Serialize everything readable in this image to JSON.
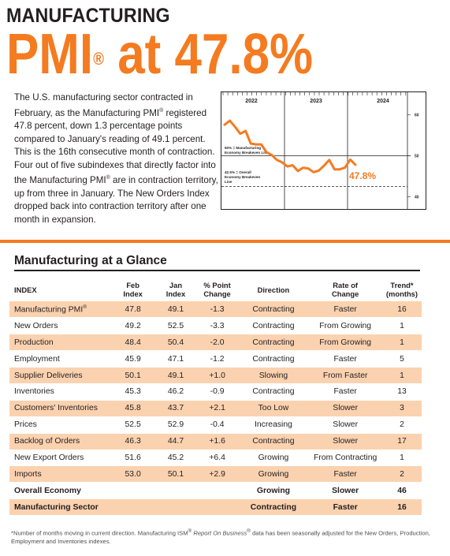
{
  "header": {
    "title_top": "MANUFACTURING",
    "title_big_prefix": "PMI",
    "title_big_reg": "®",
    "title_big_suffix": " at 47.8%"
  },
  "intro": {
    "text_1": "The U.S. manufacturing sector contracted in February, as the Manufacturing PMI",
    "reg": "®",
    "text_2": " registered 47.8 percent, down 1.3 percentage points compared to January's reading of 49.1 percent. This is the 16th consecutive month of contraction. Four out of five subindexes that directly factor into the Manufacturing PMI",
    "text_3": " are in contraction territory, up from three in January. The New Orders Index dropped back into contraction territory after one month in expansion."
  },
  "chart_data": {
    "type": "line",
    "x_labels": [
      "2022",
      "2023",
      "2024"
    ],
    "y_ticks": [
      40,
      50,
      60
    ],
    "ylim": [
      37,
      64
    ],
    "series": [
      {
        "values": [
          57.6,
          58.6,
          57.1,
          55.4,
          56.1,
          53.0,
          52.8,
          52.8,
          50.9,
          50.2,
          49.0,
          48.4,
          47.4,
          47.7,
          46.3,
          47.1,
          46.9,
          46.0,
          46.4,
          47.6,
          49.0,
          46.7,
          46.7,
          47.1,
          49.1,
          47.8
        ]
      }
    ],
    "value_label": "47.8%",
    "annotations": {
      "economy_breakeven": "50% = Manufacturing Economy Breakeven Line",
      "overall_breakeven": "42.5% = Overall Economy Breakeven Line",
      "economy_breakeven_value": 50,
      "overall_breakeven_value": 42.5
    },
    "colors": {
      "line": "#f47b20",
      "label": "#f47b20",
      "axis": "#231f20"
    }
  },
  "glance": {
    "title": "Manufacturing at a Glance",
    "headers": {
      "index": "INDEX",
      "feb": "Feb Index",
      "jan": "Jan Index",
      "change": "% Point Change",
      "direction": "Direction",
      "rate": "Rate of Change",
      "trend": "Trend* (months)"
    },
    "rows": [
      {
        "name": "Manufacturing PMI",
        "reg": "®",
        "feb": "47.8",
        "jan": "49.1",
        "change": "-1.3",
        "direction": "Contracting",
        "rate": "Faster",
        "trend": "16"
      },
      {
        "name": "New Orders",
        "feb": "49.2",
        "jan": "52.5",
        "change": "-3.3",
        "direction": "Contracting",
        "rate": "From Growing",
        "trend": "1"
      },
      {
        "name": "Production",
        "feb": "48.4",
        "jan": "50.4",
        "change": "-2.0",
        "direction": "Contracting",
        "rate": "From Growing",
        "trend": "1"
      },
      {
        "name": "Employment",
        "feb": "45.9",
        "jan": "47.1",
        "change": "-1.2",
        "direction": "Contracting",
        "rate": "Faster",
        "trend": "5"
      },
      {
        "name": "Supplier Deliveries",
        "feb": "50.1",
        "jan": "49.1",
        "change": "+1.0",
        "direction": "Slowing",
        "rate": "From Faster",
        "trend": "1"
      },
      {
        "name": "Inventories",
        "feb": "45.3",
        "jan": "46.2",
        "change": "-0.9",
        "direction": "Contracting",
        "rate": "Faster",
        "trend": "13"
      },
      {
        "name": "Customers' Inventories",
        "feb": "45.8",
        "jan": "43.7",
        "change": "+2.1",
        "direction": "Too Low",
        "rate": "Slower",
        "trend": "3"
      },
      {
        "name": "Prices",
        "feb": "52.5",
        "jan": "52.9",
        "change": "-0.4",
        "direction": "Increasing",
        "rate": "Slower",
        "trend": "2"
      },
      {
        "name": "Backlog of Orders",
        "feb": "46.3",
        "jan": "44.7",
        "change": "+1.6",
        "direction": "Contracting",
        "rate": "Slower",
        "trend": "17"
      },
      {
        "name": "New Export Orders",
        "feb": "51.6",
        "jan": "45.2",
        "change": "+6.4",
        "direction": "Growing",
        "rate": "From Contracting",
        "trend": "1"
      },
      {
        "name": "Imports",
        "feb": "53.0",
        "jan": "50.1",
        "change": "+2.9",
        "direction": "Growing",
        "rate": "Faster",
        "trend": "2"
      }
    ],
    "summary": [
      {
        "name": "Overall Economy",
        "direction": "Growing",
        "rate": "Slower",
        "trend": "46"
      },
      {
        "name": "Manufacturing Sector",
        "direction": "Contracting",
        "rate": "Faster",
        "trend": "16"
      }
    ]
  },
  "footnote": {
    "text_1": "*Number of months moving in current direction. Manufacturing ISM",
    "reg": "®",
    "italic": " Report On Business",
    "reg2": "®",
    "text_2": " data has been seasonally adjusted for the New Orders, Production, Employment and Inventories indexes."
  }
}
